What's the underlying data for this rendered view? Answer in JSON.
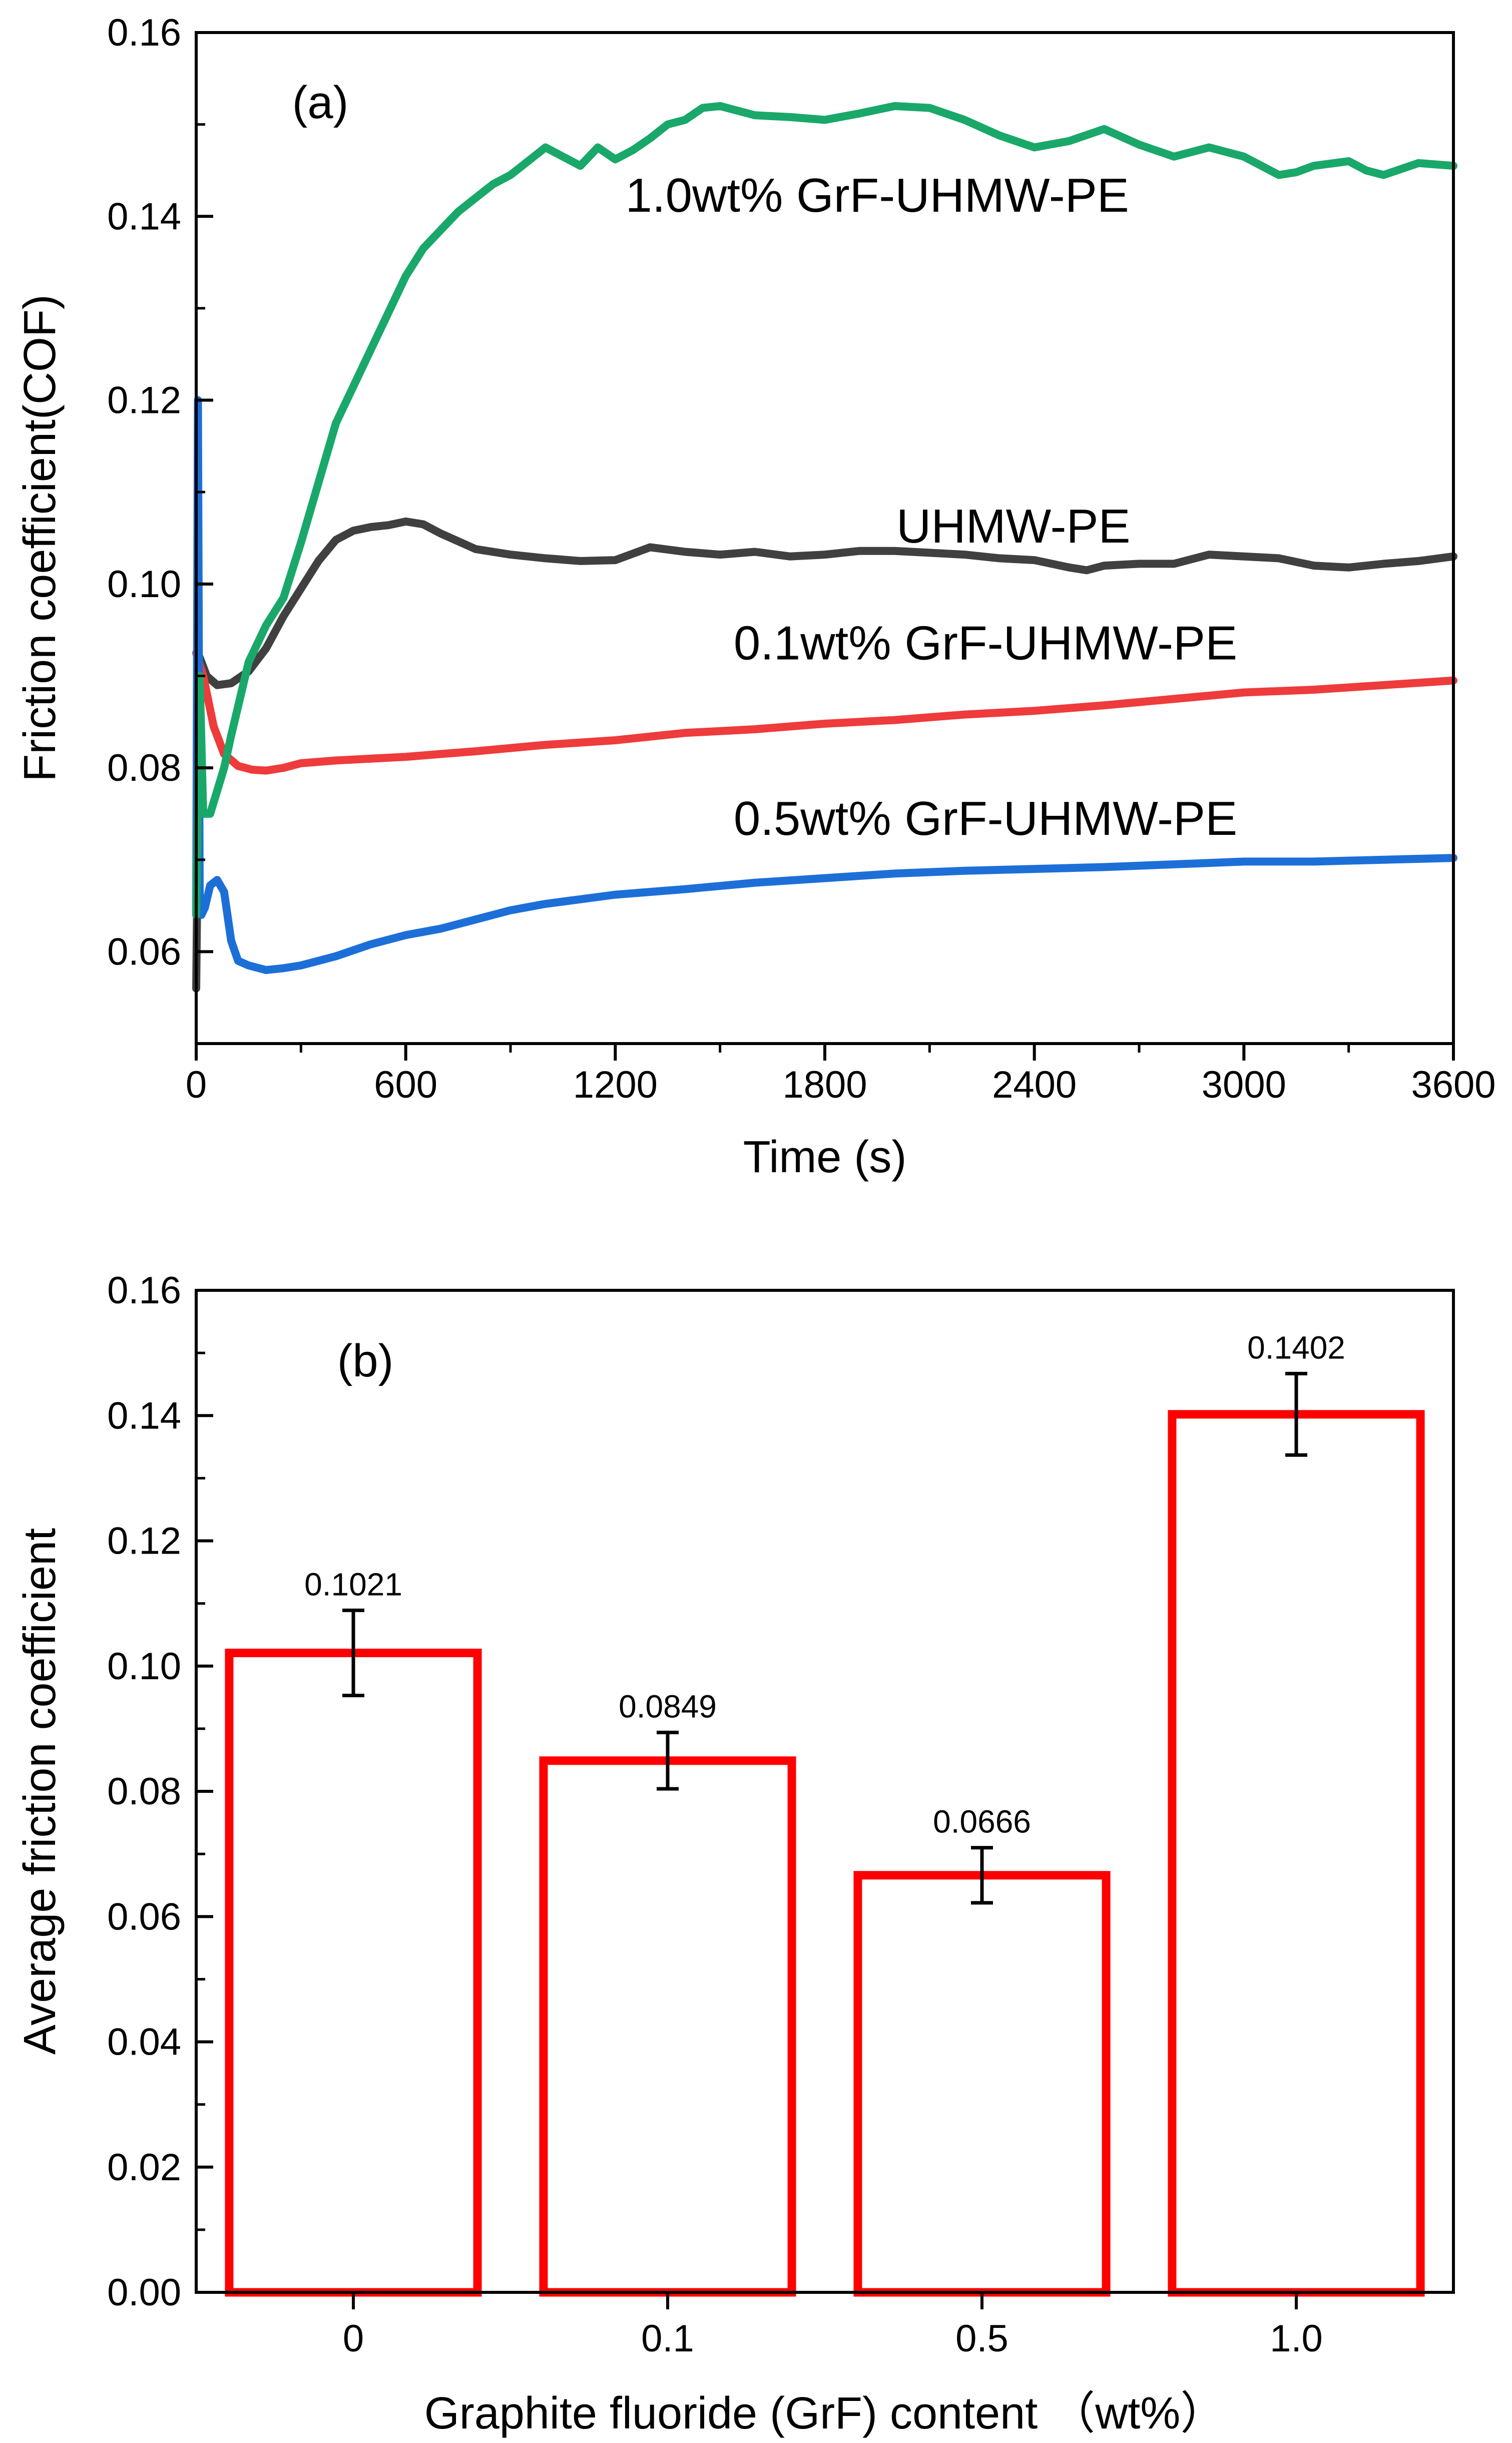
{
  "chart_data": [
    {
      "type": "line",
      "panel_label": "(a)",
      "xlabel": "Time (s)",
      "ylabel": "Friction coefficient(COF)",
      "xlim": [
        0,
        3600
      ],
      "ylim": [
        0.05,
        0.16
      ],
      "xticks": [
        "0",
        "600",
        "1200",
        "1800",
        "2400",
        "3000",
        "3600"
      ],
      "yticks": [
        "0.06",
        "0.08",
        "0.10",
        "0.12",
        "0.14",
        "0.16"
      ],
      "grid": false,
      "series": [
        {
          "name": "UHMW-PE",
          "color": "#404040",
          "label_anchor": [
            2340,
            0.1045
          ],
          "x": [
            0,
            10,
            30,
            60,
            100,
            150,
            200,
            250,
            300,
            350,
            400,
            450,
            500,
            550,
            600,
            650,
            700,
            800,
            900,
            1000,
            1100,
            1200,
            1300,
            1400,
            1500,
            1600,
            1700,
            1800,
            1900,
            2000,
            2100,
            2200,
            2300,
            2400,
            2500,
            2550,
            2600,
            2700,
            2800,
            2900,
            3000,
            3100,
            3200,
            3300,
            3400,
            3500,
            3600
          ],
          "y": [
            0.056,
            0.092,
            0.09,
            0.089,
            0.0892,
            0.0905,
            0.093,
            0.0965,
            0.0995,
            0.1025,
            0.1048,
            0.1058,
            0.1062,
            0.1064,
            0.1068,
            0.1065,
            0.1055,
            0.1038,
            0.1032,
            0.1028,
            0.1025,
            0.1026,
            0.104,
            0.1035,
            0.1032,
            0.1035,
            0.103,
            0.1032,
            0.1036,
            0.1036,
            0.1034,
            0.1032,
            0.1028,
            0.1026,
            0.1018,
            0.1015,
            0.102,
            0.1022,
            0.1022,
            0.1032,
            0.103,
            0.1028,
            0.102,
            0.1018,
            0.1022,
            0.1025,
            0.103
          ]
        },
        {
          "name": "0.1wt% GrF-UHMW-PE",
          "color": "#ee3b3b",
          "label_anchor": [
            2260,
            0.0918
          ],
          "x": [
            0,
            20,
            50,
            80,
            120,
            160,
            200,
            250,
            300,
            400,
            500,
            600,
            700,
            800,
            1000,
            1200,
            1400,
            1600,
            1800,
            2000,
            2200,
            2400,
            2600,
            2800,
            3000,
            3200,
            3400,
            3600
          ],
          "y": [
            0.0925,
            0.09,
            0.0845,
            0.0815,
            0.0802,
            0.0798,
            0.0797,
            0.08,
            0.0805,
            0.0808,
            0.081,
            0.0812,
            0.0815,
            0.0818,
            0.0825,
            0.083,
            0.0838,
            0.0842,
            0.0848,
            0.0852,
            0.0858,
            0.0862,
            0.0868,
            0.0875,
            0.0882,
            0.0885,
            0.089,
            0.0895
          ]
        },
        {
          "name": "0.5wt% GrF-UHMW-PE",
          "color": "#1d6fd8",
          "label_anchor": [
            2260,
            0.0727
          ],
          "x": [
            0,
            5,
            10,
            15,
            25,
            40,
            60,
            80,
            100,
            120,
            150,
            200,
            250,
            300,
            400,
            500,
            600,
            700,
            800,
            900,
            1000,
            1200,
            1400,
            1600,
            1800,
            2000,
            2200,
            2400,
            2600,
            2800,
            3000,
            3200,
            3400,
            3600
          ],
          "y": [
            0.064,
            0.12,
            0.066,
            0.064,
            0.0648,
            0.0672,
            0.0678,
            0.0665,
            0.0612,
            0.059,
            0.0585,
            0.058,
            0.0582,
            0.0585,
            0.0595,
            0.0608,
            0.0618,
            0.0625,
            0.0635,
            0.0645,
            0.0652,
            0.0662,
            0.0668,
            0.0675,
            0.068,
            0.0685,
            0.0688,
            0.069,
            0.0692,
            0.0695,
            0.0698,
            0.0698,
            0.07,
            0.0702
          ]
        },
        {
          "name": "1.0wt% GrF-UHMW-PE",
          "color": "#1aa86a",
          "label_anchor": [
            1950,
            0.1405
          ],
          "x": [
            0,
            10,
            20,
            40,
            60,
            80,
            100,
            150,
            200,
            250,
            300,
            350,
            400,
            450,
            500,
            550,
            600,
            650,
            700,
            750,
            800,
            850,
            900,
            950,
            1000,
            1050,
            1100,
            1150,
            1200,
            1250,
            1300,
            1350,
            1400,
            1450,
            1500,
            1550,
            1600,
            1700,
            1800,
            1900,
            2000,
            2100,
            2200,
            2300,
            2400,
            2500,
            2600,
            2700,
            2800,
            2900,
            3000,
            3100,
            3150,
            3200,
            3300,
            3350,
            3400,
            3500,
            3600
          ],
          "y": [
            0.064,
            0.09,
            0.075,
            0.075,
            0.0775,
            0.08,
            0.0835,
            0.0915,
            0.0955,
            0.0985,
            0.1045,
            0.111,
            0.1175,
            0.1215,
            0.1255,
            0.1295,
            0.1335,
            0.1365,
            0.1385,
            0.1405,
            0.142,
            0.1435,
            0.1445,
            0.146,
            0.1475,
            0.1465,
            0.1455,
            0.1475,
            0.1462,
            0.1472,
            0.1485,
            0.15,
            0.1505,
            0.1518,
            0.152,
            0.1515,
            0.151,
            0.1508,
            0.1505,
            0.1512,
            0.152,
            0.1518,
            0.1505,
            0.1488,
            0.1475,
            0.1482,
            0.1495,
            0.1478,
            0.1465,
            0.1475,
            0.1465,
            0.1445,
            0.1448,
            0.1455,
            0.146,
            0.145,
            0.1445,
            0.1458,
            0.1455
          ]
        }
      ]
    },
    {
      "type": "bar",
      "panel_label": "(b)",
      "xlabel": "Graphite fluoride (GrF) content （wt%）",
      "ylabel": "Average friction coefficient",
      "categories": [
        "0",
        "0.1",
        "0.5",
        "1.0"
      ],
      "values": [
        0.1021,
        0.0849,
        0.0666,
        0.1402
      ],
      "value_labels": [
        "0.1021",
        "0.0849",
        "0.0666",
        "0.1402"
      ],
      "errors": [
        0.0068,
        0.0045,
        0.0044,
        0.0065
      ],
      "ylim": [
        0,
        0.16
      ],
      "yticks": [
        "0.00",
        "0.02",
        "0.04",
        "0.06",
        "0.08",
        "0.10",
        "0.12",
        "0.14",
        "0.16"
      ],
      "bar_color": "#ff0000",
      "grid": false
    }
  ]
}
